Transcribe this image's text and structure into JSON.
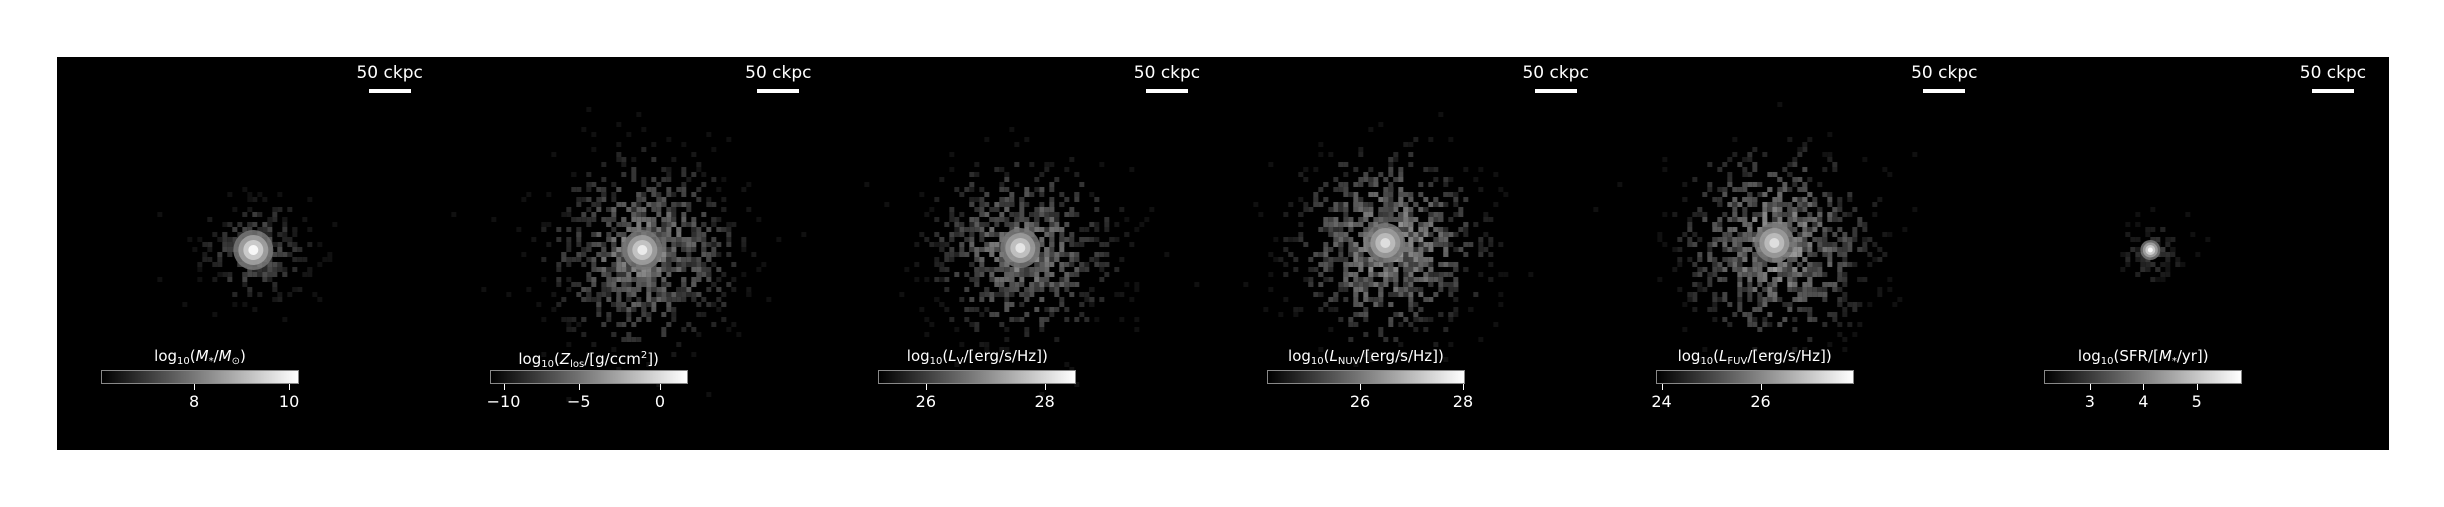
{
  "scale_bar_label": "50 ckpc",
  "panels": [
    {
      "id": "stellar-mass",
      "colorbar": {
        "label_prefix": "log",
        "label_base": "10",
        "label_open": "(",
        "label_var": "M",
        "label_var_sub": "*",
        "label_mid": "/",
        "label_unit": "M",
        "label_unit_sub": "⊙",
        "label_close": ")",
        "ticks": [
          "8",
          "10"
        ],
        "tick_fractions": [
          0.47,
          0.95
        ]
      }
    },
    {
      "id": "metallicity",
      "colorbar": {
        "label_prefix": "log",
        "label_base": "10",
        "label_open": "(",
        "label_var": "Z",
        "label_var_sub": "los",
        "label_mid": "/[g/ccm",
        "label_sup": "2",
        "label_close": "])",
        "ticks": [
          "−10",
          "−5",
          "0"
        ],
        "tick_fractions": [
          0.07,
          0.45,
          0.86
        ]
      }
    },
    {
      "id": "luminosity-v",
      "colorbar": {
        "label_prefix": "log",
        "label_base": "10",
        "label_open": "(",
        "label_var": "L",
        "label_var_sub": "V",
        "label_mid": "/[erg/s/Hz]",
        "label_close": ")",
        "ticks": [
          "26",
          "28"
        ],
        "tick_fractions": [
          0.24,
          0.84
        ]
      }
    },
    {
      "id": "luminosity-nuv",
      "colorbar": {
        "label_prefix": "log",
        "label_base": "10",
        "label_open": "(",
        "label_var": "L",
        "label_var_sub": "NUV",
        "label_mid": "/[erg/s/Hz]",
        "label_close": ")",
        "ticks": [
          "26",
          "28"
        ],
        "tick_fractions": [
          0.47,
          0.99
        ]
      }
    },
    {
      "id": "luminosity-fuv",
      "colorbar": {
        "label_prefix": "log",
        "label_base": "10",
        "label_open": "(",
        "label_var": "L",
        "label_var_sub": "FUV",
        "label_mid": "/[erg/s/Hz]",
        "label_close": ")",
        "ticks": [
          "24",
          "26"
        ],
        "tick_fractions": [
          0.03,
          0.53
        ]
      }
    },
    {
      "id": "sfr",
      "colorbar": {
        "label_prefix": "log",
        "label_base": "10",
        "label_open": "(SFR/[",
        "label_var": "M",
        "label_var_sub": "*",
        "label_mid": "/yr])",
        "label_close": "",
        "ticks": [
          "3",
          "4",
          "5"
        ],
        "tick_fractions": [
          0.23,
          0.5,
          0.77
        ]
      }
    }
  ]
}
